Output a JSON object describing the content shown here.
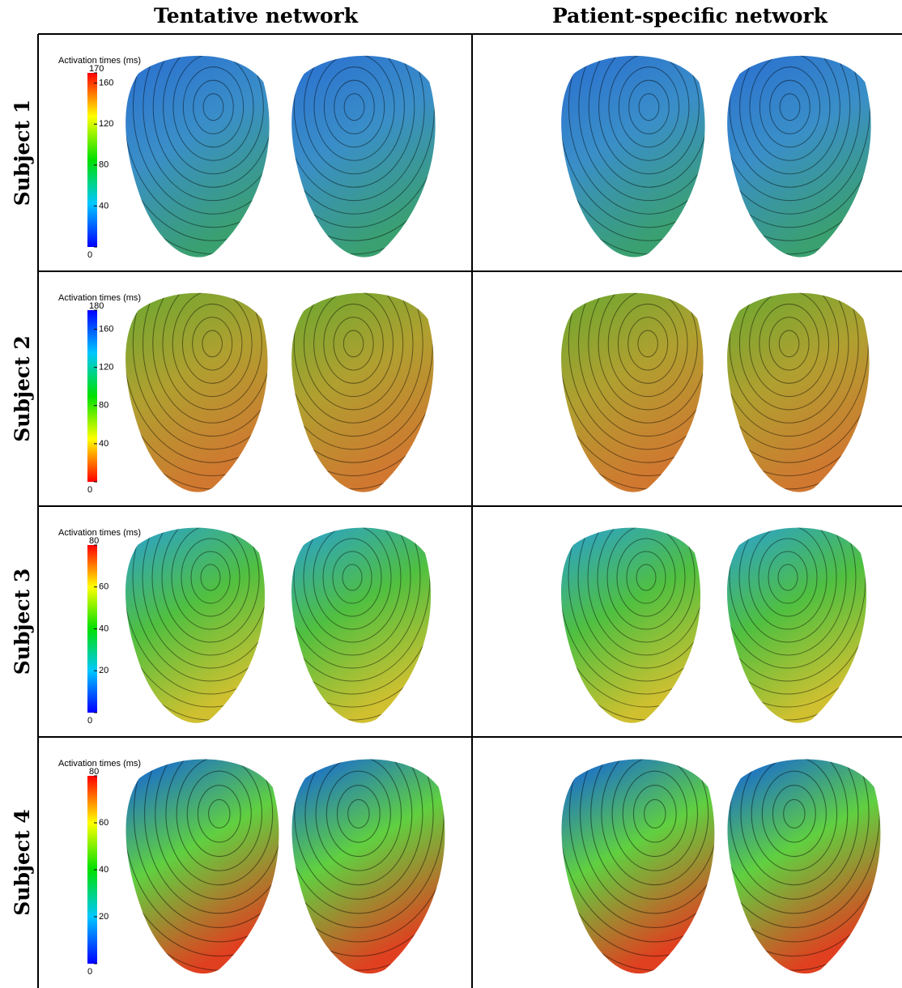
{
  "header": {
    "columns": [
      "Tentative network",
      "Patient-specific network"
    ]
  },
  "rows": [
    {
      "label": "Subject 1",
      "colorbar": {
        "title": "Activation times (ms)",
        "lim": [
          0,
          170
        ],
        "ticks": [
          0,
          40,
          80,
          120,
          160,
          170
        ],
        "colors": [
          "#0000ff",
          "#00c8ff",
          "#00e000",
          "#ffff00",
          "#ff0000"
        ]
      }
    },
    {
      "label": "Subject 2",
      "colorbar": {
        "title": "Activation times (ms)",
        "lim": [
          0,
          180
        ],
        "ticks": [
          0,
          40,
          80,
          120,
          160,
          180
        ],
        "colors": [
          "#ff0000",
          "#ffff00",
          "#00e000",
          "#00c8ff",
          "#0000ff"
        ]
      }
    },
    {
      "label": "Subject 3",
      "colorbar": {
        "title": "Activation times (ms)",
        "lim": [
          0,
          80
        ],
        "ticks": [
          0,
          20,
          40,
          60,
          80
        ],
        "colors": [
          "#0000ff",
          "#00c8ff",
          "#00e000",
          "#ffff00",
          "#ff0000"
        ]
      }
    },
    {
      "label": "Subject 4",
      "colorbar": {
        "title": "Activation times (ms)",
        "lim": [
          0,
          80
        ],
        "ticks": [
          0,
          20,
          40,
          60,
          80
        ],
        "colors": [
          "#0000ff",
          "#00c8ff",
          "#00e000",
          "#ffff00",
          "#ff0000"
        ]
      }
    }
  ]
}
